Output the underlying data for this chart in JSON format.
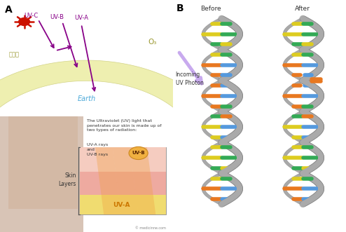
{
  "panel_a_label": "A",
  "panel_b_label": "B",
  "bg_color": "#ffffff",
  "ozone_color": "#edeea8",
  "ozone_text": "오젠층",
  "o3_text": "O₃",
  "earth_text": "Earth",
  "earth_color": "#4aa8d8",
  "uv_arrow_color": "#880088",
  "sun_color": "#cc1100",
  "before_label": "Before",
  "after_label": "After",
  "incoming_label": "Incoming\nUV Photon",
  "incoming_arrow_color": "#c8aaee",
  "dna_backbone_color": "#aaaaaa",
  "dna_outline_color": "#888888",
  "dna_colors": [
    "#e87820",
    "#5599dd",
    "#ddcc20",
    "#33aa55"
  ],
  "skin_text1": "The Ultraviolet (UV) light that\npenetrates our skin is made up of\ntwo types of radiation:",
  "skin_text2": "UV-A rays\nand\nUV-B rays",
  "uvb_label": "UV-B",
  "uva_label": "UV-A",
  "skin_layers_label": "Skin\nLayers",
  "face_color": "#c0957a",
  "epidermis_color": "#f0c8b8",
  "dermis_color": "#eaa898",
  "hypodermis_color": "#f0dc80",
  "uv_beam_color": "#f0a040"
}
